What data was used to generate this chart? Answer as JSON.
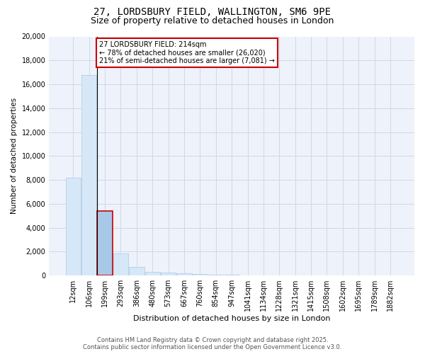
{
  "title1": "27, LORDSBURY FIELD, WALLINGTON, SM6 9PE",
  "title2": "Size of property relative to detached houses in London",
  "xlabel": "Distribution of detached houses by size in London",
  "ylabel": "Number of detached properties",
  "categories": [
    "12sqm",
    "106sqm",
    "199sqm",
    "293sqm",
    "386sqm",
    "480sqm",
    "573sqm",
    "667sqm",
    "760sqm",
    "854sqm",
    "947sqm",
    "1041sqm",
    "1134sqm",
    "1228sqm",
    "1321sqm",
    "1415sqm",
    "1508sqm",
    "1602sqm",
    "1695sqm",
    "1789sqm",
    "1882sqm"
  ],
  "values": [
    8200,
    16800,
    5400,
    1850,
    700,
    320,
    220,
    160,
    120,
    80,
    50,
    30,
    20,
    15,
    10,
    8,
    6,
    5,
    4,
    3,
    2
  ],
  "bar_color": "#d6e8f7",
  "bar_edge_color": "#a8c8e8",
  "highlight_bar_index": 2,
  "highlight_color": "#a8c8e8",
  "highlight_edge_color": "#cc0000",
  "annotation_line1": "27 LORDSBURY FIELD: 214sqm",
  "annotation_line2": "← 78% of detached houses are smaller (26,020)",
  "annotation_line3": "21% of semi-detached houses are larger (7,081) →",
  "annotation_box_color": "#ffffff",
  "annotation_border_color": "#cc0000",
  "ylim": [
    0,
    20000
  ],
  "yticks": [
    0,
    2000,
    4000,
    6000,
    8000,
    10000,
    12000,
    14000,
    16000,
    18000,
    20000
  ],
  "footer1": "Contains HM Land Registry data © Crown copyright and database right 2025.",
  "footer2": "Contains public sector information licensed under the Open Government Licence v3.0.",
  "bg_color": "#ffffff",
  "plot_bg_color": "#eef2fa",
  "grid_color": "#d0d8e8",
  "title1_fontsize": 10,
  "title2_fontsize": 9
}
